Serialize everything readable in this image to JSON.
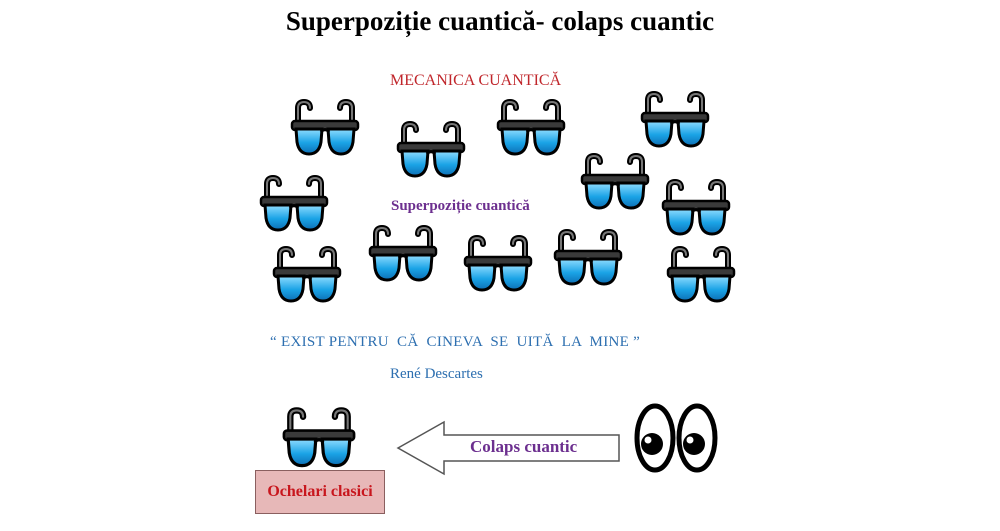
{
  "title": "Superpoziție cuantică- colaps cuantic",
  "mechanics_label": "MECANICA CUANTICĂ",
  "superposition_label": "Superpoziție cuantică",
  "quote": "“ EXIST PENTRU  CĂ  CINEVA  SE  UITĂ  LA  MINE ”",
  "quote_author": "René Descartes",
  "collapse_label": "Colaps cuantic",
  "classic_label": "Ochelari clasici",
  "icons": {
    "glasses": "sunglasses-icon",
    "eyes": "eyes-icon",
    "arrow": "left-arrow-icon"
  },
  "colors": {
    "title": "#000000",
    "mechanics": "#c0262b",
    "superposition": "#6c2f8f",
    "quote": "#2d6fb0",
    "lens": "#1aa3e6",
    "frame": "#3a3a3a",
    "classic_box": "#e7b8b8",
    "classic_text": "#c8161d"
  }
}
